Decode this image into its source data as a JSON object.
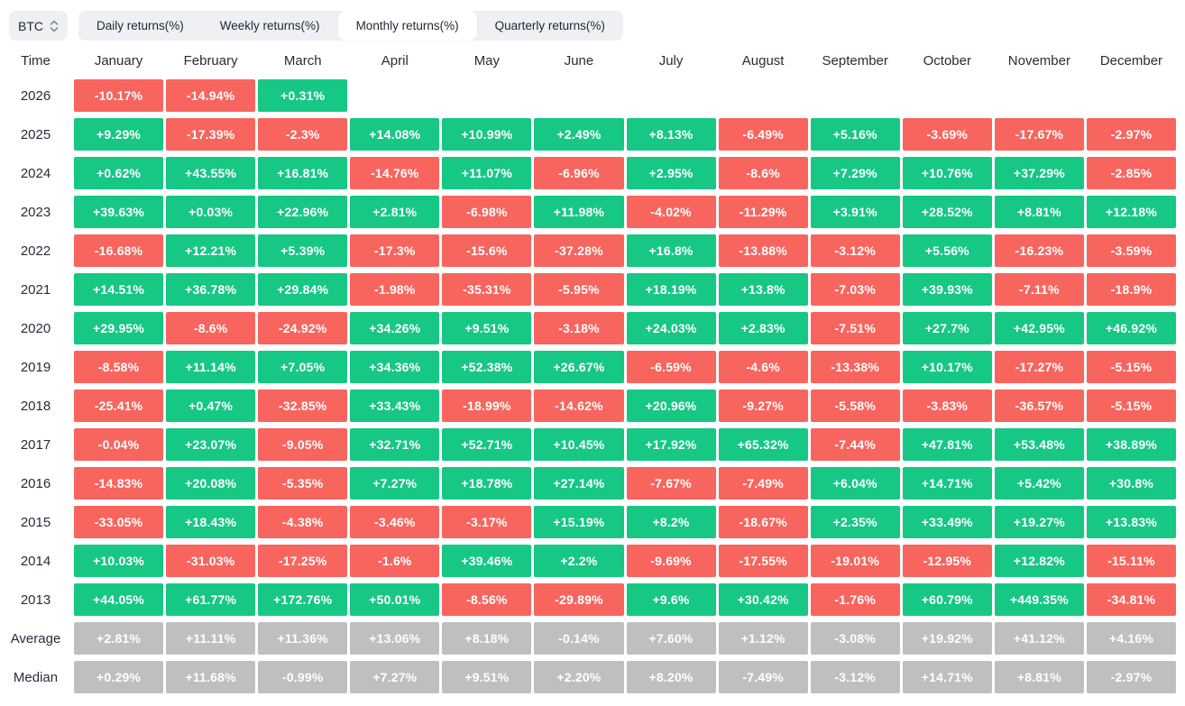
{
  "controls": {
    "symbol": {
      "value": "BTC"
    },
    "tabs": [
      {
        "label": "Daily returns(%)",
        "active": false
      },
      {
        "label": "Weekly returns(%)",
        "active": false
      },
      {
        "label": "Monthly returns(%)",
        "active": true
      },
      {
        "label": "Quarterly returns(%)",
        "active": false
      }
    ]
  },
  "colors": {
    "positive": "#17c784",
    "negative": "#f7655e",
    "stat": "#bfbfbf",
    "panel": "#eef0f4",
    "text_dark": "#232834"
  },
  "table": {
    "time_header": "Time",
    "months": [
      "January",
      "February",
      "March",
      "April",
      "May",
      "June",
      "July",
      "August",
      "September",
      "October",
      "November",
      "December"
    ],
    "rows": [
      {
        "label": "2026",
        "cells": [
          {
            "v": "-10.17%",
            "s": "n"
          },
          {
            "v": "-14.94%",
            "s": "n"
          },
          {
            "v": "+0.31%",
            "s": "p"
          },
          null,
          null,
          null,
          null,
          null,
          null,
          null,
          null,
          null
        ]
      },
      {
        "label": "2025",
        "cells": [
          {
            "v": "+9.29%",
            "s": "p"
          },
          {
            "v": "-17.39%",
            "s": "n"
          },
          {
            "v": "-2.3%",
            "s": "n"
          },
          {
            "v": "+14.08%",
            "s": "p"
          },
          {
            "v": "+10.99%",
            "s": "p"
          },
          {
            "v": "+2.49%",
            "s": "p"
          },
          {
            "v": "+8.13%",
            "s": "p"
          },
          {
            "v": "-6.49%",
            "s": "n"
          },
          {
            "v": "+5.16%",
            "s": "p"
          },
          {
            "v": "-3.69%",
            "s": "n"
          },
          {
            "v": "-17.67%",
            "s": "n"
          },
          {
            "v": "-2.97%",
            "s": "n"
          }
        ]
      },
      {
        "label": "2024",
        "cells": [
          {
            "v": "+0.62%",
            "s": "p"
          },
          {
            "v": "+43.55%",
            "s": "p"
          },
          {
            "v": "+16.81%",
            "s": "p"
          },
          {
            "v": "-14.76%",
            "s": "n"
          },
          {
            "v": "+11.07%",
            "s": "p"
          },
          {
            "v": "-6.96%",
            "s": "n"
          },
          {
            "v": "+2.95%",
            "s": "p"
          },
          {
            "v": "-8.6%",
            "s": "n"
          },
          {
            "v": "+7.29%",
            "s": "p"
          },
          {
            "v": "+10.76%",
            "s": "p"
          },
          {
            "v": "+37.29%",
            "s": "p"
          },
          {
            "v": "-2.85%",
            "s": "n"
          }
        ]
      },
      {
        "label": "2023",
        "cells": [
          {
            "v": "+39.63%",
            "s": "p"
          },
          {
            "v": "+0.03%",
            "s": "p"
          },
          {
            "v": "+22.96%",
            "s": "p"
          },
          {
            "v": "+2.81%",
            "s": "p"
          },
          {
            "v": "-6.98%",
            "s": "n"
          },
          {
            "v": "+11.98%",
            "s": "p"
          },
          {
            "v": "-4.02%",
            "s": "n"
          },
          {
            "v": "-11.29%",
            "s": "n"
          },
          {
            "v": "+3.91%",
            "s": "p"
          },
          {
            "v": "+28.52%",
            "s": "p"
          },
          {
            "v": "+8.81%",
            "s": "p"
          },
          {
            "v": "+12.18%",
            "s": "p"
          }
        ]
      },
      {
        "label": "2022",
        "cells": [
          {
            "v": "-16.68%",
            "s": "n"
          },
          {
            "v": "+12.21%",
            "s": "p"
          },
          {
            "v": "+5.39%",
            "s": "p"
          },
          {
            "v": "-17.3%",
            "s": "n"
          },
          {
            "v": "-15.6%",
            "s": "n"
          },
          {
            "v": "-37.28%",
            "s": "n"
          },
          {
            "v": "+16.8%",
            "s": "p"
          },
          {
            "v": "-13.88%",
            "s": "n"
          },
          {
            "v": "-3.12%",
            "s": "n"
          },
          {
            "v": "+5.56%",
            "s": "p"
          },
          {
            "v": "-16.23%",
            "s": "n"
          },
          {
            "v": "-3.59%",
            "s": "n"
          }
        ]
      },
      {
        "label": "2021",
        "cells": [
          {
            "v": "+14.51%",
            "s": "p"
          },
          {
            "v": "+36.78%",
            "s": "p"
          },
          {
            "v": "+29.84%",
            "s": "p"
          },
          {
            "v": "-1.98%",
            "s": "n"
          },
          {
            "v": "-35.31%",
            "s": "n"
          },
          {
            "v": "-5.95%",
            "s": "n"
          },
          {
            "v": "+18.19%",
            "s": "p"
          },
          {
            "v": "+13.8%",
            "s": "p"
          },
          {
            "v": "-7.03%",
            "s": "n"
          },
          {
            "v": "+39.93%",
            "s": "p"
          },
          {
            "v": "-7.11%",
            "s": "n"
          },
          {
            "v": "-18.9%",
            "s": "n"
          }
        ]
      },
      {
        "label": "2020",
        "cells": [
          {
            "v": "+29.95%",
            "s": "p"
          },
          {
            "v": "-8.6%",
            "s": "n"
          },
          {
            "v": "-24.92%",
            "s": "n"
          },
          {
            "v": "+34.26%",
            "s": "p"
          },
          {
            "v": "+9.51%",
            "s": "p"
          },
          {
            "v": "-3.18%",
            "s": "n"
          },
          {
            "v": "+24.03%",
            "s": "p"
          },
          {
            "v": "+2.83%",
            "s": "p"
          },
          {
            "v": "-7.51%",
            "s": "n"
          },
          {
            "v": "+27.7%",
            "s": "p"
          },
          {
            "v": "+42.95%",
            "s": "p"
          },
          {
            "v": "+46.92%",
            "s": "p"
          }
        ]
      },
      {
        "label": "2019",
        "cells": [
          {
            "v": "-8.58%",
            "s": "n"
          },
          {
            "v": "+11.14%",
            "s": "p"
          },
          {
            "v": "+7.05%",
            "s": "p"
          },
          {
            "v": "+34.36%",
            "s": "p"
          },
          {
            "v": "+52.38%",
            "s": "p"
          },
          {
            "v": "+26.67%",
            "s": "p"
          },
          {
            "v": "-6.59%",
            "s": "n"
          },
          {
            "v": "-4.6%",
            "s": "n"
          },
          {
            "v": "-13.38%",
            "s": "n"
          },
          {
            "v": "+10.17%",
            "s": "p"
          },
          {
            "v": "-17.27%",
            "s": "n"
          },
          {
            "v": "-5.15%",
            "s": "n"
          }
        ]
      },
      {
        "label": "2018",
        "cells": [
          {
            "v": "-25.41%",
            "s": "n"
          },
          {
            "v": "+0.47%",
            "s": "p"
          },
          {
            "v": "-32.85%",
            "s": "n"
          },
          {
            "v": "+33.43%",
            "s": "p"
          },
          {
            "v": "-18.99%",
            "s": "n"
          },
          {
            "v": "-14.62%",
            "s": "n"
          },
          {
            "v": "+20.96%",
            "s": "p"
          },
          {
            "v": "-9.27%",
            "s": "n"
          },
          {
            "v": "-5.58%",
            "s": "n"
          },
          {
            "v": "-3.83%",
            "s": "n"
          },
          {
            "v": "-36.57%",
            "s": "n"
          },
          {
            "v": "-5.15%",
            "s": "n"
          }
        ]
      },
      {
        "label": "2017",
        "cells": [
          {
            "v": "-0.04%",
            "s": "n"
          },
          {
            "v": "+23.07%",
            "s": "p"
          },
          {
            "v": "-9.05%",
            "s": "n"
          },
          {
            "v": "+32.71%",
            "s": "p"
          },
          {
            "v": "+52.71%",
            "s": "p"
          },
          {
            "v": "+10.45%",
            "s": "p"
          },
          {
            "v": "+17.92%",
            "s": "p"
          },
          {
            "v": "+65.32%",
            "s": "p"
          },
          {
            "v": "-7.44%",
            "s": "n"
          },
          {
            "v": "+47.81%",
            "s": "p"
          },
          {
            "v": "+53.48%",
            "s": "p"
          },
          {
            "v": "+38.89%",
            "s": "p"
          }
        ]
      },
      {
        "label": "2016",
        "cells": [
          {
            "v": "-14.83%",
            "s": "n"
          },
          {
            "v": "+20.08%",
            "s": "p"
          },
          {
            "v": "-5.35%",
            "s": "n"
          },
          {
            "v": "+7.27%",
            "s": "p"
          },
          {
            "v": "+18.78%",
            "s": "p"
          },
          {
            "v": "+27.14%",
            "s": "p"
          },
          {
            "v": "-7.67%",
            "s": "n"
          },
          {
            "v": "-7.49%",
            "s": "n"
          },
          {
            "v": "+6.04%",
            "s": "p"
          },
          {
            "v": "+14.71%",
            "s": "p"
          },
          {
            "v": "+5.42%",
            "s": "p"
          },
          {
            "v": "+30.8%",
            "s": "p"
          }
        ]
      },
      {
        "label": "2015",
        "cells": [
          {
            "v": "-33.05%",
            "s": "n"
          },
          {
            "v": "+18.43%",
            "s": "p"
          },
          {
            "v": "-4.38%",
            "s": "n"
          },
          {
            "v": "-3.46%",
            "s": "n"
          },
          {
            "v": "-3.17%",
            "s": "n"
          },
          {
            "v": "+15.19%",
            "s": "p"
          },
          {
            "v": "+8.2%",
            "s": "p"
          },
          {
            "v": "-18.67%",
            "s": "n"
          },
          {
            "v": "+2.35%",
            "s": "p"
          },
          {
            "v": "+33.49%",
            "s": "p"
          },
          {
            "v": "+19.27%",
            "s": "p"
          },
          {
            "v": "+13.83%",
            "s": "p"
          }
        ]
      },
      {
        "label": "2014",
        "cells": [
          {
            "v": "+10.03%",
            "s": "p"
          },
          {
            "v": "-31.03%",
            "s": "n"
          },
          {
            "v": "-17.25%",
            "s": "n"
          },
          {
            "v": "-1.6%",
            "s": "n"
          },
          {
            "v": "+39.46%",
            "s": "p"
          },
          {
            "v": "+2.2%",
            "s": "p"
          },
          {
            "v": "-9.69%",
            "s": "n"
          },
          {
            "v": "-17.55%",
            "s": "n"
          },
          {
            "v": "-19.01%",
            "s": "n"
          },
          {
            "v": "-12.95%",
            "s": "n"
          },
          {
            "v": "+12.82%",
            "s": "p"
          },
          {
            "v": "-15.11%",
            "s": "n"
          }
        ]
      },
      {
        "label": "2013",
        "cells": [
          {
            "v": "+44.05%",
            "s": "p"
          },
          {
            "v": "+61.77%",
            "s": "p"
          },
          {
            "v": "+172.76%",
            "s": "p"
          },
          {
            "v": "+50.01%",
            "s": "p"
          },
          {
            "v": "-8.56%",
            "s": "n"
          },
          {
            "v": "-29.89%",
            "s": "n"
          },
          {
            "v": "+9.6%",
            "s": "p"
          },
          {
            "v": "+30.42%",
            "s": "p"
          },
          {
            "v": "-1.76%",
            "s": "n"
          },
          {
            "v": "+60.79%",
            "s": "p"
          },
          {
            "v": "+449.35%",
            "s": "p"
          },
          {
            "v": "-34.81%",
            "s": "n"
          }
        ]
      },
      {
        "label": "Average",
        "cells": [
          {
            "v": "+2.81%",
            "s": "s"
          },
          {
            "v": "+11.11%",
            "s": "s"
          },
          {
            "v": "+11.36%",
            "s": "s"
          },
          {
            "v": "+13.06%",
            "s": "s"
          },
          {
            "v": "+8.18%",
            "s": "s"
          },
          {
            "v": "-0.14%",
            "s": "s"
          },
          {
            "v": "+7.60%",
            "s": "s"
          },
          {
            "v": "+1.12%",
            "s": "s"
          },
          {
            "v": "-3.08%",
            "s": "s"
          },
          {
            "v": "+19.92%",
            "s": "s"
          },
          {
            "v": "+41.12%",
            "s": "s"
          },
          {
            "v": "+4.16%",
            "s": "s"
          }
        ]
      },
      {
        "label": "Median",
        "cells": [
          {
            "v": "+0.29%",
            "s": "s"
          },
          {
            "v": "+11.68%",
            "s": "s"
          },
          {
            "v": "-0.99%",
            "s": "s"
          },
          {
            "v": "+7.27%",
            "s": "s"
          },
          {
            "v": "+9.51%",
            "s": "s"
          },
          {
            "v": "+2.20%",
            "s": "s"
          },
          {
            "v": "+8.20%",
            "s": "s"
          },
          {
            "v": "-7.49%",
            "s": "s"
          },
          {
            "v": "-3.12%",
            "s": "s"
          },
          {
            "v": "+14.71%",
            "s": "s"
          },
          {
            "v": "+8.81%",
            "s": "s"
          },
          {
            "v": "-2.97%",
            "s": "s"
          }
        ]
      }
    ]
  }
}
